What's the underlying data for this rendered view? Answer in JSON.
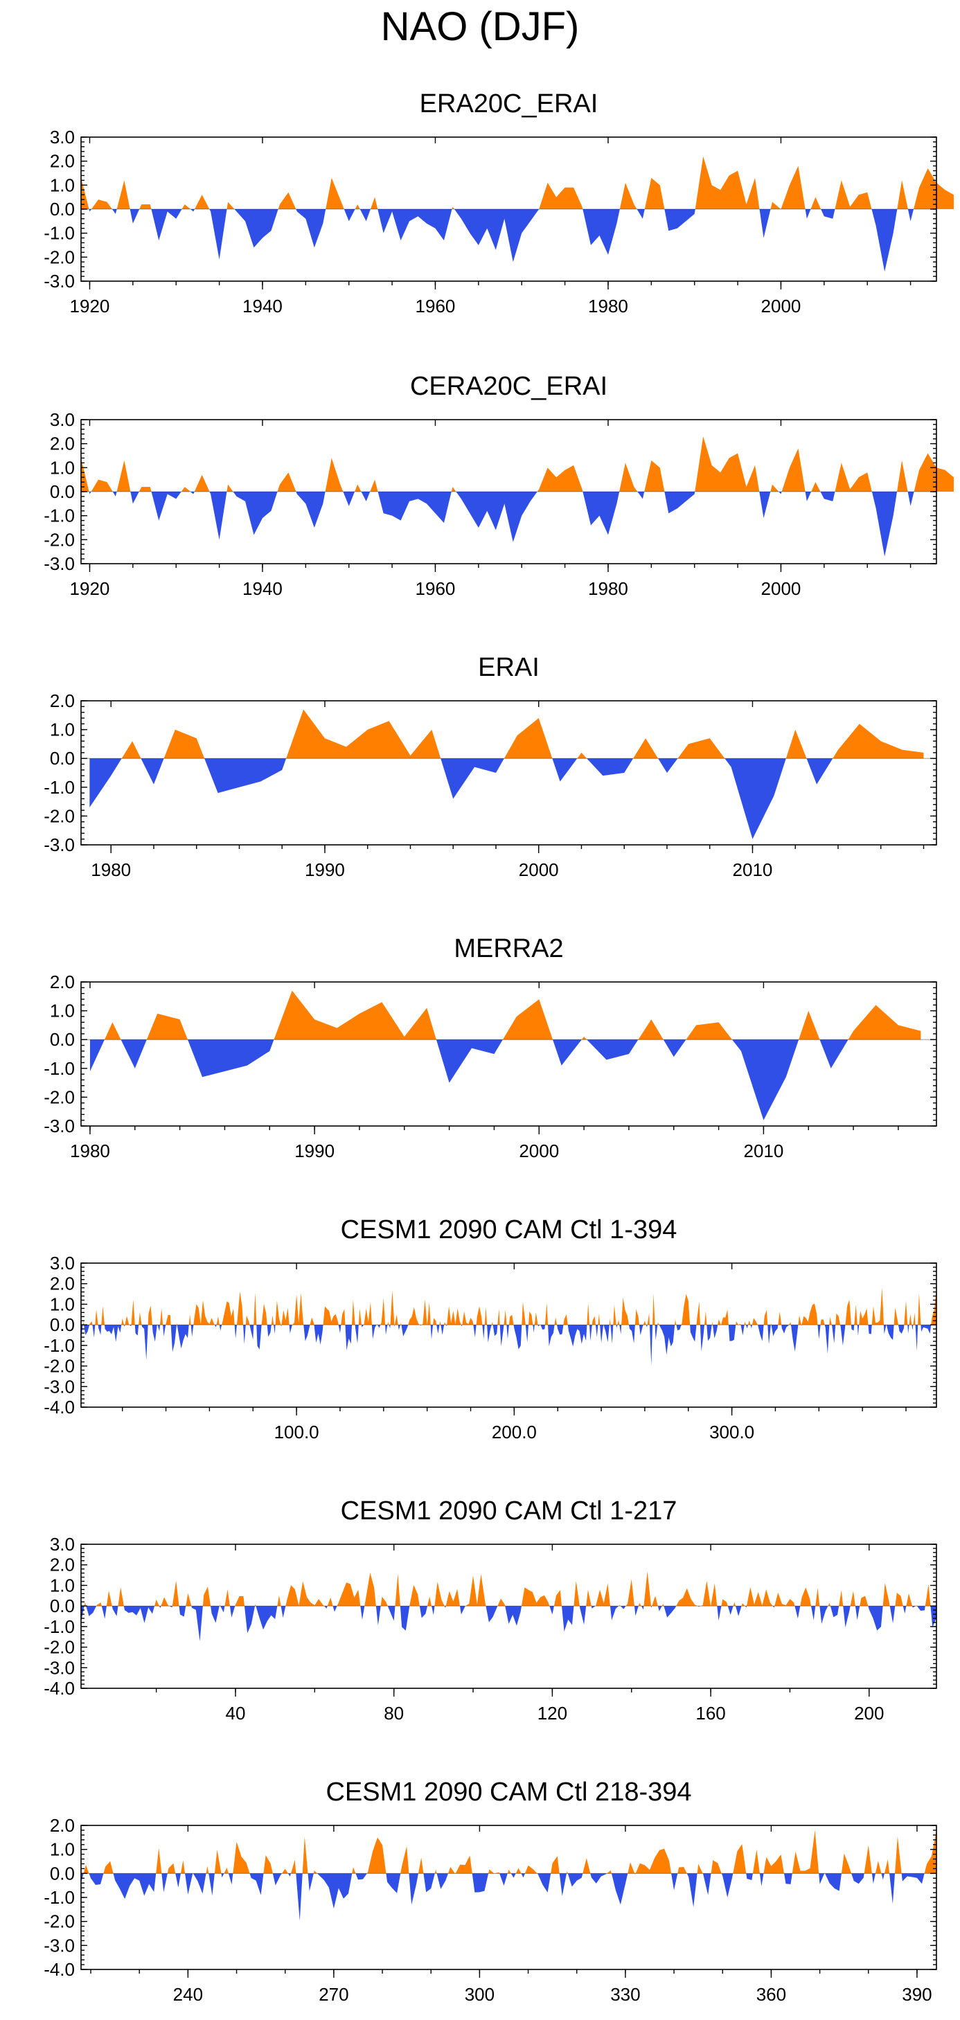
{
  "figure_title": "NAO (DJF)",
  "colors": {
    "positive": "#ff8000",
    "negative": "#2f4fe6",
    "frame": "#000000"
  },
  "chart_data": [
    {
      "type": "area",
      "title": "ERA20C_ERAI",
      "xlim": [
        1919,
        2018
      ],
      "ylim": [
        -3.0,
        3.0
      ],
      "yticks": [
        3.0,
        2.0,
        1.0,
        0.0,
        -1.0,
        -2.0,
        -3.0
      ],
      "ytick_labels": [
        "3.0",
        "2.0",
        "1.0",
        "0.0",
        "-1.0",
        "-2.0",
        "-3.0"
      ],
      "xticks": [
        1920,
        1940,
        1960,
        1980,
        2000
      ],
      "xtick_labels": [
        "1920",
        "1940",
        "1960",
        "1980",
        "2000"
      ],
      "x_start": 1919,
      "x_step": 1,
      "values": [
        1.3,
        -0.1,
        0.4,
        0.3,
        -0.2,
        1.2,
        -0.6,
        0.2,
        0.2,
        -1.3,
        -0.1,
        -0.4,
        0.2,
        -0.1,
        0.6,
        -0.1,
        -2.1,
        0.3,
        -0.1,
        -0.5,
        -1.6,
        -1.2,
        -0.9,
        0.2,
        0.7,
        -0.1,
        -0.4,
        -1.6,
        -0.6,
        1.3,
        0.4,
        -0.5,
        0.2,
        -0.5,
        0.5,
        -1.0,
        -0.1,
        -1.3,
        -0.5,
        -0.3,
        -0.6,
        -0.8,
        -1.3,
        0.1,
        -0.4,
        -1.0,
        -1.5,
        -0.8,
        -1.7,
        -0.4,
        -2.2,
        -1.0,
        -0.5,
        0.0,
        1.1,
        0.5,
        0.9,
        0.9,
        0.1,
        -1.5,
        -1.1,
        -1.9,
        -0.6,
        1.1,
        0.2,
        -0.4,
        1.3,
        1.0,
        -0.9,
        -0.8,
        -0.5,
        -0.2,
        2.2,
        1.0,
        0.8,
        1.4,
        1.6,
        0.2,
        1.3,
        -1.2,
        0.3,
        0.0,
        1.0,
        1.8,
        -0.4,
        0.5,
        -0.3,
        -0.4,
        1.2,
        0.1,
        0.6,
        0.7,
        -0.7,
        -2.6,
        -1.0,
        1.2,
        -0.5,
        0.9,
        1.7,
        1.1,
        0.8,
        0.6
      ]
    },
    {
      "type": "area",
      "title": "CERA20C_ERAI",
      "xlim": [
        1919,
        2018
      ],
      "ylim": [
        -3.0,
        3.0
      ],
      "yticks": [
        3.0,
        2.0,
        1.0,
        0.0,
        -1.0,
        -2.0,
        -3.0
      ],
      "ytick_labels": [
        "3.0",
        "2.0",
        "1.0",
        "0.0",
        "-1.0",
        "-2.0",
        "-3.0"
      ],
      "xticks": [
        1920,
        1940,
        1960,
        1980,
        2000
      ],
      "xtick_labels": [
        "1920",
        "1940",
        "1960",
        "1980",
        "2000"
      ],
      "x_start": 1919,
      "x_step": 1,
      "values": [
        1.4,
        -0.1,
        0.5,
        0.4,
        -0.2,
        1.3,
        -0.5,
        0.2,
        0.2,
        -1.2,
        -0.1,
        -0.3,
        0.2,
        -0.1,
        0.7,
        -0.1,
        -2.0,
        0.3,
        -0.2,
        -0.4,
        -1.8,
        -1.1,
        -0.8,
        0.3,
        0.8,
        -0.1,
        -0.5,
        -1.5,
        -0.5,
        1.4,
        0.3,
        -0.6,
        0.3,
        -0.4,
        0.5,
        -0.9,
        -1.0,
        -1.2,
        -0.4,
        -0.3,
        -0.5,
        -0.9,
        -1.3,
        0.2,
        -0.3,
        -0.9,
        -1.5,
        -0.8,
        -1.6,
        -0.5,
        -2.1,
        -1.0,
        -0.4,
        0.1,
        1.0,
        0.6,
        0.9,
        1.1,
        0.1,
        -1.4,
        -1.0,
        -1.8,
        -0.5,
        1.2,
        0.2,
        -0.3,
        1.3,
        1.0,
        -0.9,
        -0.7,
        -0.4,
        -0.1,
        2.3,
        1.1,
        0.8,
        1.4,
        1.6,
        0.2,
        1.1,
        -1.1,
        0.3,
        -0.1,
        1.0,
        1.8,
        -0.4,
        0.4,
        -0.3,
        -0.4,
        1.2,
        0.1,
        0.6,
        0.8,
        -0.7,
        -2.7,
        -1.0,
        1.3,
        -0.6,
        0.9,
        1.6,
        1.0,
        0.9,
        0.6
      ]
    },
    {
      "type": "area",
      "title": "ERAI",
      "xlim": [
        1978.6,
        2018.6
      ],
      "ylim": [
        -3.0,
        2.0
      ],
      "yticks": [
        2.0,
        1.0,
        0.0,
        -1.0,
        -2.0,
        -3.0
      ],
      "ytick_labels": [
        "2.0",
        "1.0",
        "0.0",
        "-1.0",
        "-2.0",
        "-3.0"
      ],
      "xticks": [
        1980,
        1990,
        2000,
        2010
      ],
      "xtick_labels": [
        "1980",
        "1990",
        "2000",
        "2010"
      ],
      "x_start": 1979,
      "x_step": 1,
      "values": [
        -1.7,
        -0.6,
        0.6,
        -0.9,
        1.0,
        0.7,
        -1.2,
        -1.0,
        -0.8,
        -0.4,
        1.7,
        0.7,
        0.4,
        1.0,
        1.3,
        0.1,
        1.0,
        -1.4,
        -0.3,
        -0.5,
        0.8,
        1.4,
        -0.8,
        0.2,
        -0.6,
        -0.5,
        0.7,
        -0.5,
        0.5,
        0.7,
        -0.3,
        -2.8,
        -1.3,
        1.0,
        -0.9,
        0.3,
        1.2,
        0.6,
        0.3,
        0.2
      ]
    },
    {
      "type": "area",
      "title": "MERRA2",
      "xlim": [
        1979.6,
        2017.7
      ],
      "ylim": [
        -3.0,
        2.0
      ],
      "yticks": [
        2.0,
        1.0,
        0.0,
        -1.0,
        -2.0,
        -3.0
      ],
      "ytick_labels": [
        "2.0",
        "1.0",
        "0.0",
        "-1.0",
        "-2.0",
        "-3.0"
      ],
      "xticks": [
        1980,
        1990,
        2000,
        2010
      ],
      "xtick_labels": [
        "1980",
        "1990",
        "2000",
        "2010"
      ],
      "x_start": 1980,
      "x_step": 1,
      "values": [
        -1.1,
        0.6,
        -1.0,
        0.9,
        0.7,
        -1.3,
        -1.1,
        -0.9,
        -0.4,
        1.7,
        0.7,
        0.4,
        0.9,
        1.3,
        0.1,
        1.1,
        -1.5,
        -0.3,
        -0.5,
        0.8,
        1.4,
        -0.9,
        0.1,
        -0.7,
        -0.5,
        0.7,
        -0.6,
        0.5,
        0.6,
        -0.4,
        -2.8,
        -1.3,
        1.0,
        -1.0,
        0.3,
        1.2,
        0.5,
        0.3
      ]
    },
    {
      "type": "area",
      "title": "CESM1 2090 CAM Ctl 1-394",
      "xlim": [
        1,
        394
      ],
      "ylim": [
        -4.0,
        3.0
      ],
      "yticks": [
        3.0,
        2.0,
        1.0,
        0.0,
        -1.0,
        -2.0,
        -3.0,
        -4.0
      ],
      "ytick_labels": [
        "3.0",
        "2.0",
        "1.0",
        "0.0",
        "-1.0",
        "-2.0",
        "-3.0",
        "-4.0"
      ],
      "xticks": [
        100,
        200,
        300
      ],
      "xtick_labels": [
        "100.0",
        "200.0",
        "300.0"
      ],
      "x_start": 1,
      "x_step": 1,
      "seed": 7,
      "n": 394,
      "pos_amp": 2.2,
      "neg_amp": 3.7,
      "ref": "cesm_1_217+cesm_218_394"
    },
    {
      "type": "area",
      "title": "CESM1 2090 CAM Ctl 1-217",
      "xlim": [
        1,
        217
      ],
      "ylim": [
        -4.0,
        3.0
      ],
      "yticks": [
        3.0,
        2.0,
        1.0,
        0.0,
        -1.0,
        -2.0,
        -3.0,
        -4.0
      ],
      "ytick_labels": [
        "3.0",
        "2.0",
        "1.0",
        "0.0",
        "-1.0",
        "-2.0",
        "-3.0",
        "-4.0"
      ],
      "xticks": [
        40,
        80,
        120,
        160,
        200
      ],
      "xtick_labels": [
        "40",
        "80",
        "120",
        "160",
        "200"
      ],
      "x_start": 1,
      "x_step": 1,
      "seed": 11,
      "n": 217,
      "pos_amp": 2.4,
      "neg_amp": 3.7
    },
    {
      "type": "area",
      "title": "CESM1 2090 CAM Ctl 218-394",
      "xlim": [
        218,
        394
      ],
      "ylim": [
        -4.0,
        2.0
      ],
      "yticks": [
        2.0,
        1.0,
        0.0,
        -1.0,
        -2.0,
        -3.0,
        -4.0
      ],
      "ytick_labels": [
        "2.0",
        "1.0",
        "0.0",
        "-1.0",
        "-2.0",
        "-3.0",
        "-4.0"
      ],
      "xticks": [
        240,
        270,
        300,
        330,
        360,
        390
      ],
      "xtick_labels": [
        "240",
        "270",
        "300",
        "330",
        "360",
        "390"
      ],
      "x_start": 218,
      "x_step": 1,
      "seed": 23,
      "n": 177,
      "pos_amp": 1.8,
      "neg_amp": 3.7
    }
  ]
}
